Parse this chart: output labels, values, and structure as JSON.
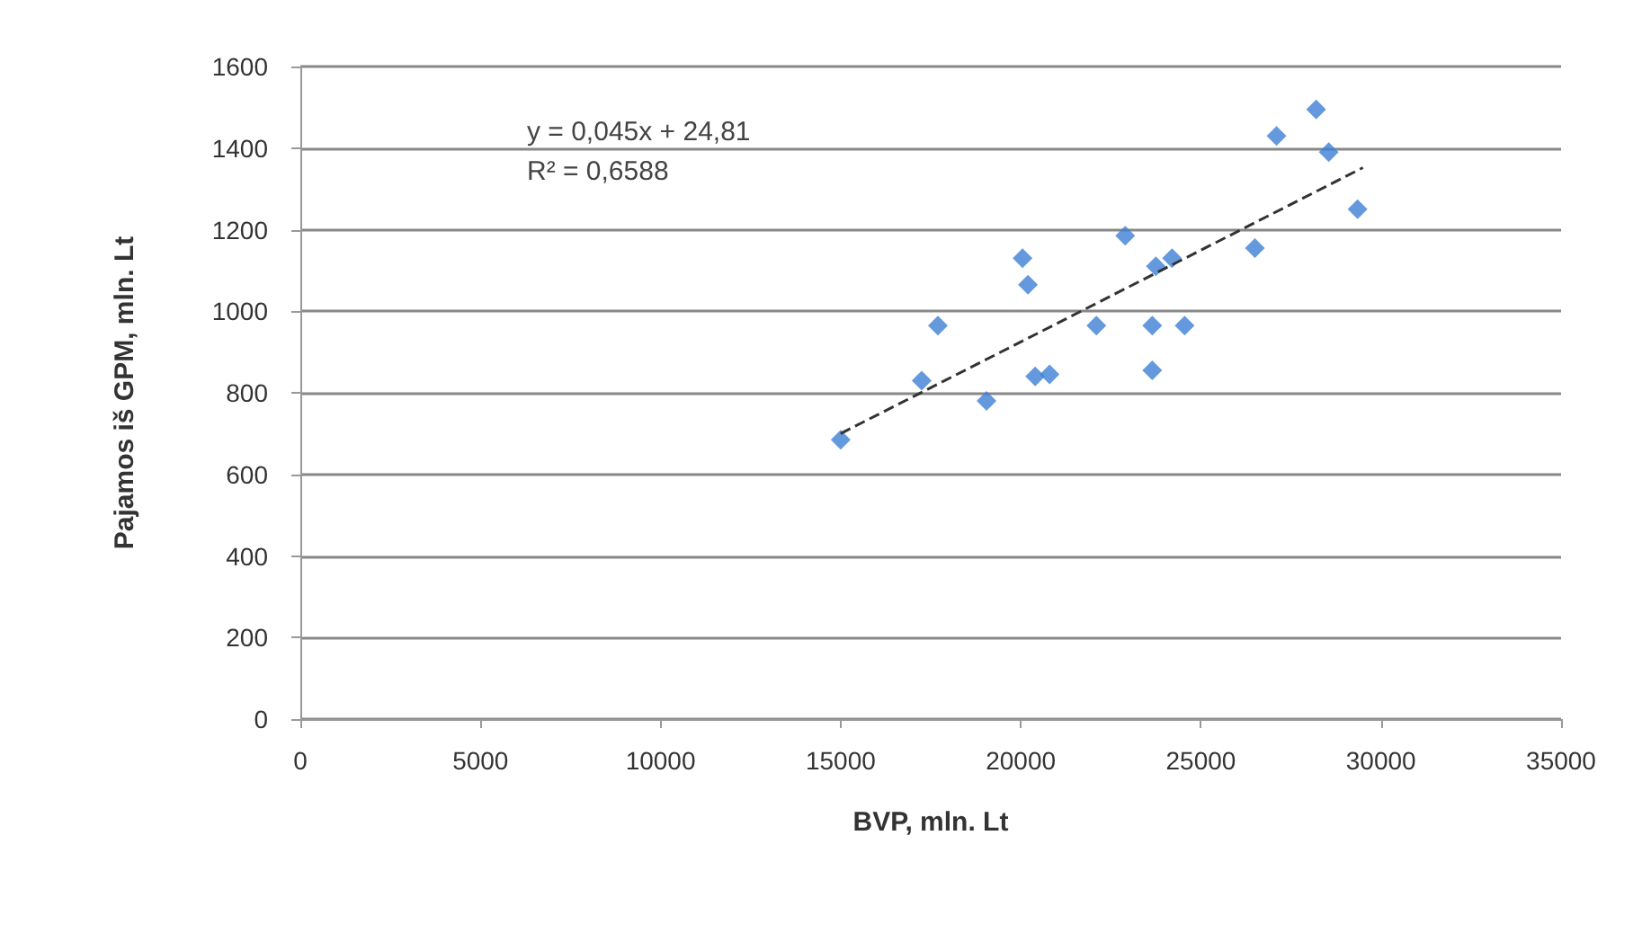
{
  "chart_data": {
    "type": "scatter",
    "xlabel": "BVP, mln. Lt",
    "ylabel": "Pajamos iš GPM, mln. Lt",
    "annotations": [
      "y = 0,045x + 24,81",
      "R² = 0,6588"
    ],
    "xlim": [
      0,
      35000
    ],
    "xticks": [
      0,
      5000,
      10000,
      15000,
      20000,
      25000,
      30000,
      35000
    ],
    "ylim": [
      0,
      1600
    ],
    "yticks": [
      0,
      200,
      400,
      600,
      800,
      1000,
      1200,
      1400,
      1600
    ],
    "grid": "y",
    "marker": "diamond",
    "series": [
      {
        "color": "#3d7fd4",
        "x": [
          15000,
          17250,
          17700,
          19050,
          20050,
          20200,
          20400,
          20800,
          22100,
          22900,
          23650,
          23650,
          23750,
          24200,
          24550,
          26500,
          27100,
          28200,
          28550,
          29350
        ],
        "values": [
          685,
          830,
          965,
          780,
          1130,
          1065,
          840,
          845,
          965,
          1185,
          965,
          855,
          1110,
          1130,
          965,
          1155,
          1430,
          1495,
          1390,
          1250
        ]
      },
      {
        "type": "line",
        "color": "#333333",
        "line_style": "dashed",
        "marker": "none",
        "x": [
          15000,
          29500
        ],
        "values": [
          700,
          1352
        ]
      }
    ]
  }
}
